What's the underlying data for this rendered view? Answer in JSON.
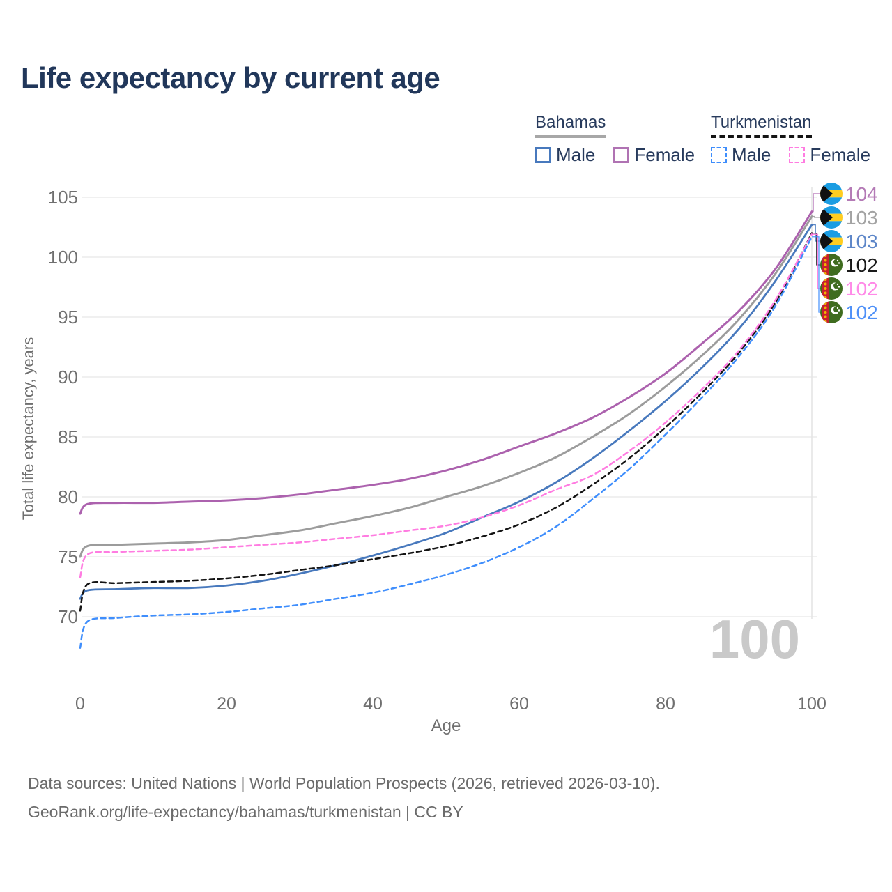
{
  "title": "Life expectancy by current age",
  "legend": {
    "groups": [
      {
        "country": "Bahamas",
        "line_style": "solid",
        "underline_color": "#a7a7a7",
        "items": [
          {
            "label": "Male",
            "color": "#4879bd",
            "dashed": false
          },
          {
            "label": "Female",
            "color": "#b073b3",
            "dashed": false
          }
        ]
      },
      {
        "country": "Turkmenistan",
        "line_style": "dashed",
        "underline_color": "#141414",
        "items": [
          {
            "label": "Male",
            "color": "#3f8efc",
            "dashed": true
          },
          {
            "label": "Female",
            "color": "#ff7ce1",
            "dashed": true
          }
        ]
      }
    ]
  },
  "chart_data": {
    "type": "line",
    "title": "Life expectancy by current age",
    "xlabel": "Age",
    "ylabel": "Total life expectancy, years",
    "xlim": [
      0,
      100
    ],
    "ylim": [
      66,
      106
    ],
    "xticks": [
      0,
      20,
      40,
      60,
      80,
      100
    ],
    "yticks": [
      70,
      75,
      80,
      85,
      90,
      95,
      100,
      105
    ],
    "grid": true,
    "hover_age_readout": "100",
    "legend_position": "top-right",
    "ages": [
      0,
      1,
      5,
      10,
      15,
      20,
      25,
      30,
      35,
      40,
      45,
      50,
      55,
      60,
      65,
      70,
      75,
      80,
      85,
      90,
      95,
      100
    ],
    "series": [
      {
        "name": "Bahamas Female",
        "country": "Bahamas",
        "flag": "bahamas",
        "color": "#ac62ae",
        "dashed": false,
        "width": 3,
        "end_label": "104",
        "end_label_color": "#b47ab6",
        "values": [
          78.6,
          79.4,
          79.5,
          79.5,
          79.6,
          79.7,
          79.9,
          80.2,
          80.6,
          81.0,
          81.5,
          82.2,
          83.1,
          84.2,
          85.3,
          86.6,
          88.3,
          90.3,
          92.8,
          95.5,
          99.0,
          103.8
        ]
      },
      {
        "name": "Bahamas Both sexes",
        "country": "Bahamas",
        "flag": "bahamas",
        "color": "#9c9c9c",
        "dashed": false,
        "width": 3,
        "end_label": "103",
        "end_label_color": "#a3a3a3",
        "values": [
          75.0,
          75.9,
          76.0,
          76.1,
          76.2,
          76.4,
          76.8,
          77.2,
          77.8,
          78.4,
          79.1,
          80.0,
          80.9,
          82.0,
          83.3,
          85.0,
          86.9,
          89.2,
          91.8,
          94.8,
          98.6,
          103.4
        ]
      },
      {
        "name": "Bahamas Male",
        "country": "Bahamas",
        "flag": "bahamas",
        "color": "#4879bd",
        "dashed": false,
        "width": 2.8,
        "end_label": "103",
        "end_label_color": "#5d86c8",
        "values": [
          71.5,
          72.2,
          72.3,
          72.4,
          72.4,
          72.6,
          73.0,
          73.6,
          74.3,
          75.1,
          76.0,
          77.0,
          78.3,
          79.6,
          81.2,
          83.2,
          85.5,
          88.0,
          90.8,
          94.0,
          98.0,
          102.7
        ]
      },
      {
        "name": "Turkmenistan Both sexes",
        "country": "Turkmenistan",
        "flag": "turkmenistan",
        "color": "#141414",
        "dashed": true,
        "width": 2.5,
        "end_label": "102",
        "end_label_color": "#1a1a1a",
        "values": [
          70.5,
          72.7,
          72.8,
          72.9,
          73.0,
          73.2,
          73.5,
          73.9,
          74.3,
          74.8,
          75.3,
          75.9,
          76.7,
          77.7,
          79.1,
          81.0,
          83.2,
          85.8,
          88.7,
          92.0,
          96.2,
          102.0
        ]
      },
      {
        "name": "Turkmenistan Female",
        "country": "Turkmenistan",
        "flag": "turkmenistan",
        "color": "#ff7ce1",
        "dashed": true,
        "width": 2.5,
        "end_label": "102",
        "end_label_color": "#ff8ae8",
        "values": [
          73.3,
          75.2,
          75.4,
          75.5,
          75.6,
          75.8,
          76.0,
          76.2,
          76.5,
          76.8,
          77.2,
          77.6,
          78.3,
          79.3,
          80.6,
          81.8,
          83.8,
          86.2,
          89.0,
          92.2,
          96.4,
          101.9
        ]
      },
      {
        "name": "Turkmenistan Male",
        "country": "Turkmenistan",
        "flag": "turkmenistan",
        "color": "#3f8efc",
        "dashed": true,
        "width": 2.5,
        "end_label": "102",
        "end_label_color": "#4e90f8",
        "values": [
          67.4,
          69.6,
          69.9,
          70.1,
          70.2,
          70.4,
          70.7,
          71.0,
          71.5,
          72.0,
          72.7,
          73.5,
          74.5,
          75.8,
          77.5,
          79.8,
          82.3,
          85.2,
          88.3,
          91.7,
          95.9,
          101.7
        ]
      }
    ],
    "colors": {
      "grid": "#ececec",
      "hover_line": "#e4e4e4",
      "tick_text": "#6f6f6f",
      "watermark": "#c9c9c9",
      "title_text": "#21375a",
      "flag_bahamas": [
        "#1b9de2",
        "#ffcd1f",
        "#111111"
      ],
      "flag_turkmenistan": [
        "#3f6c1f",
        "#c6202e",
        "#f0b400",
        "#ffffff"
      ]
    }
  },
  "footer": {
    "line1": "Data sources: United Nations | World Population Prospects (2026, retrieved 2026-03-10).",
    "line2": "GeoRank.org/life-expectancy/bahamas/turkmenistan | CC BY"
  }
}
